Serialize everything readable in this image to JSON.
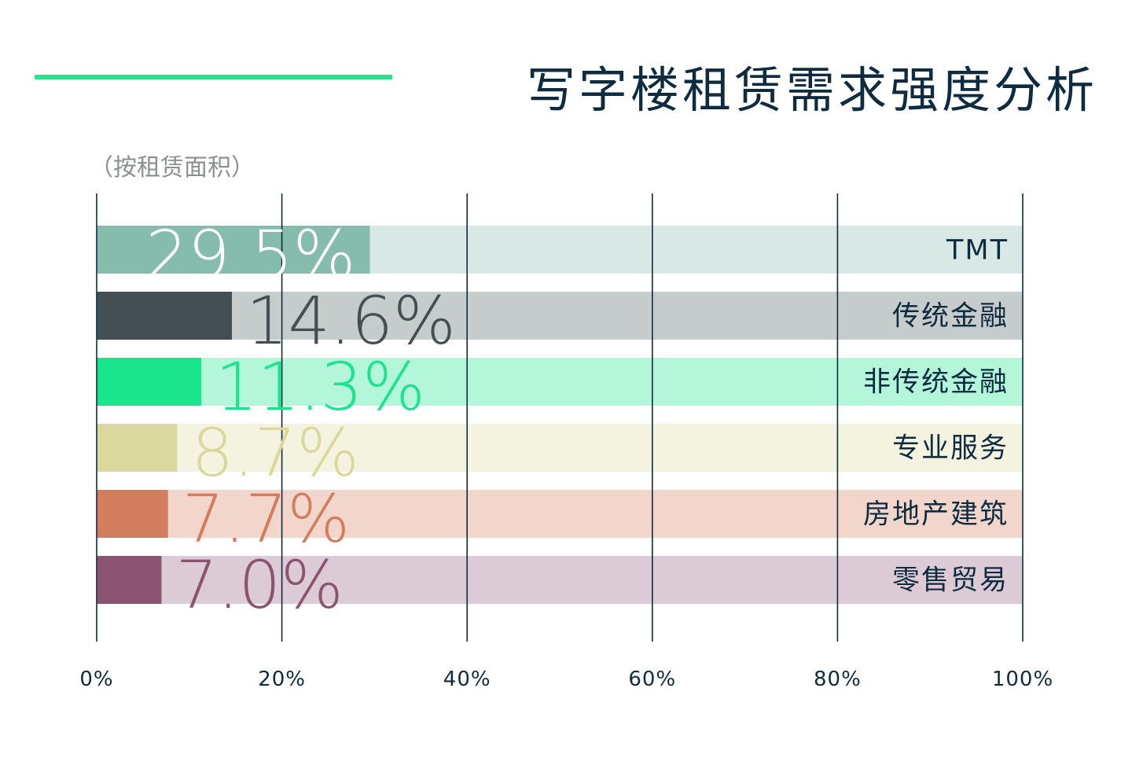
{
  "title": "写字楼租赁需求强度分析",
  "subtitle": "（按租赁面积）",
  "colors": {
    "accent_line": "#2ee08a",
    "title": "#0e2b40",
    "grid": "#0e2b40",
    "axis_text": "#0e2b40",
    "category_text": "#0e2b40"
  },
  "chart_data": {
    "type": "bar",
    "orientation": "horizontal",
    "stacked_to_100": true,
    "categories": [
      "TMT",
      "传统金融",
      "非传统金融",
      "专业服务",
      "房地产建筑",
      "零售贸易"
    ],
    "values": [
      29.5,
      14.6,
      11.3,
      8.7,
      7.7,
      7.0
    ],
    "value_labels": [
      "29.5%",
      "14.6%",
      "11.3%",
      "8.7%",
      "7.7%",
      "7.0%"
    ],
    "bar_colors": [
      "#85bcac",
      "#434f53",
      "#1ae48c",
      "#dbd89d",
      "#d27e5e",
      "#8a5370"
    ],
    "track_colors": [
      "#d8e9e5",
      "#c6cbcb",
      "#b4f6d9",
      "#f4f3df",
      "#f2d5cb",
      "#dccad4"
    ],
    "label_colors": [
      "#ffffff",
      "#434f53",
      "#1ae48c",
      "#dbd89d",
      "#d27e5e",
      "#8a5370"
    ],
    "xlim": [
      0,
      100
    ],
    "xticks": [
      0,
      20,
      40,
      60,
      80,
      100
    ],
    "xtick_labels": [
      "0%",
      "20%",
      "40%",
      "60%",
      "80%",
      "100%"
    ],
    "grid": true,
    "xlabel": "",
    "ylabel": ""
  }
}
